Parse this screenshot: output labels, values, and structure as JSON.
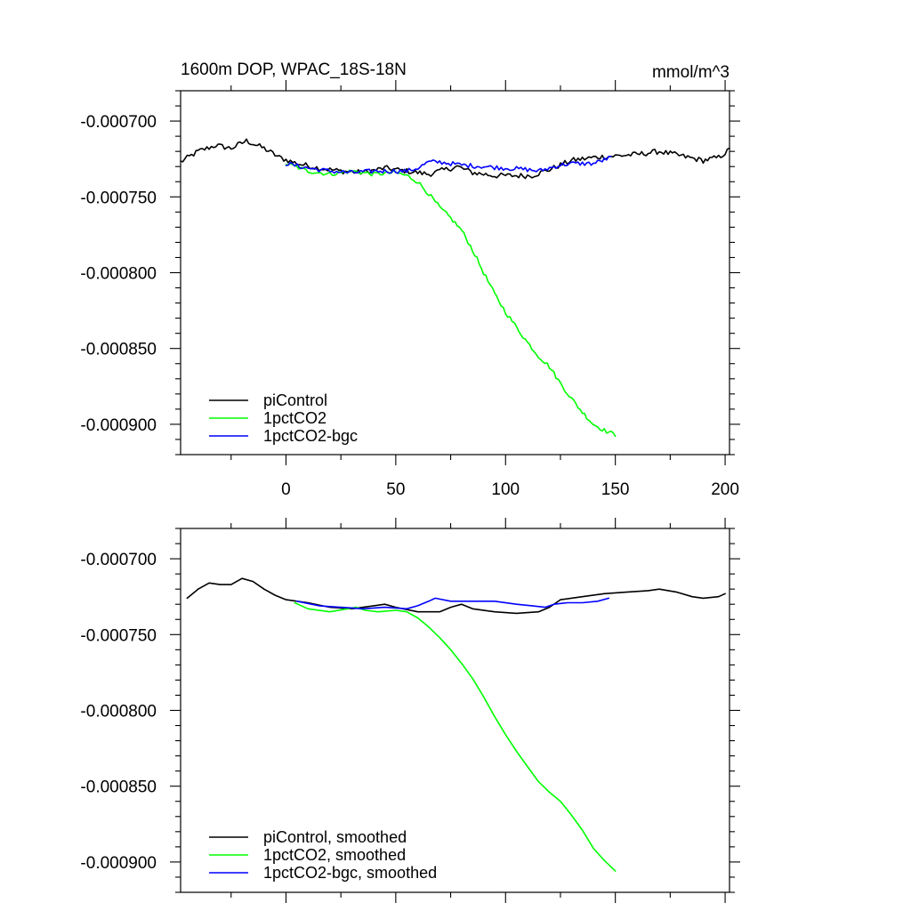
{
  "chart_data": [
    {
      "type": "line",
      "title": "1600m DOP, WPAC_18S-18N",
      "units_label": "mmol/m^3",
      "xlabel": "",
      "ylabel": "",
      "xlim": [
        -48,
        202
      ],
      "ylim": [
        -0.00092,
        -0.00068
      ],
      "x_ticks": [
        0,
        50,
        100,
        150,
        200
      ],
      "x_tick_labels": [
        "0",
        "50",
        "100",
        "150",
        "200"
      ],
      "x_minor_ticks": [
        -25,
        25,
        75,
        125,
        175
      ],
      "y_ticks": [
        -0.0007,
        -0.00075,
        -0.0008,
        -0.00085,
        -0.0009
      ],
      "y_tick_labels": [
        "-0.000700",
        "-0.000750",
        "-0.000800",
        "-0.000850",
        "-0.000900"
      ],
      "grid": false,
      "legend_position": "bottom-left",
      "series": [
        {
          "name": "piControl",
          "color": "#000000",
          "noise": 1.8e-06,
          "points": [
            [
              -48,
              -0.000727
            ],
            [
              -40,
              -0.00072
            ],
            [
              -32,
              -0.000716
            ],
            [
              -25,
              -0.000718
            ],
            [
              -18,
              -0.000713
            ],
            [
              -10,
              -0.000718
            ],
            [
              -3,
              -0.000724
            ],
            [
              5,
              -0.000728
            ],
            [
              15,
              -0.000731
            ],
            [
              25,
              -0.000733
            ],
            [
              35,
              -0.000734
            ],
            [
              45,
              -0.000731
            ],
            [
              55,
              -0.000733
            ],
            [
              65,
              -0.000735
            ],
            [
              70,
              -0.000733
            ],
            [
              78,
              -0.00073
            ],
            [
              85,
              -0.000734
            ],
            [
              95,
              -0.000736
            ],
            [
              105,
              -0.000736
            ],
            [
              112,
              -0.000736
            ],
            [
              120,
              -0.000732
            ],
            [
              130,
              -0.000726
            ],
            [
              140,
              -0.000724
            ],
            [
              150,
              -0.000723
            ],
            [
              160,
              -0.000722
            ],
            [
              170,
              -0.00072
            ],
            [
              180,
              -0.000723
            ],
            [
              190,
              -0.000726
            ],
            [
              197,
              -0.000724
            ],
            [
              202,
              -0.000719
            ]
          ]
        },
        {
          "name": "1pctCO2",
          "color": "#00ff00",
          "noise": 1.4e-06,
          "points": [
            [
              0,
              -0.000728
            ],
            [
              10,
              -0.000733
            ],
            [
              20,
              -0.000735
            ],
            [
              30,
              -0.000733
            ],
            [
              40,
              -0.000735
            ],
            [
              50,
              -0.000734
            ],
            [
              55,
              -0.000736
            ],
            [
              60,
              -0.00074
            ],
            [
              65,
              -0.000748
            ],
            [
              70,
              -0.000757
            ],
            [
              75,
              -0.000764
            ],
            [
              80,
              -0.000772
            ],
            [
              85,
              -0.000785
            ],
            [
              90,
              -0.0008
            ],
            [
              95,
              -0.000814
            ],
            [
              100,
              -0.000826
            ],
            [
              105,
              -0.000836
            ],
            [
              110,
              -0.000846
            ],
            [
              115,
              -0.000855
            ],
            [
              120,
              -0.000862
            ],
            [
              125,
              -0.000873
            ],
            [
              130,
              -0.000883
            ],
            [
              135,
              -0.000892
            ],
            [
              140,
              -0.0009
            ],
            [
              145,
              -0.000904
            ],
            [
              150,
              -0.000907
            ]
          ]
        },
        {
          "name": "1pctCO2-bgc",
          "color": "#0000ff",
          "noise": 1.5e-06,
          "points": [
            [
              0,
              -0.000728
            ],
            [
              10,
              -0.000731
            ],
            [
              20,
              -0.000733
            ],
            [
              30,
              -0.000734
            ],
            [
              40,
              -0.000733
            ],
            [
              50,
              -0.000733
            ],
            [
              55,
              -0.000733
            ],
            [
              60,
              -0.000731
            ],
            [
              65,
              -0.000727
            ],
            [
              70,
              -0.000727
            ],
            [
              80,
              -0.000729
            ],
            [
              90,
              -0.00073
            ],
            [
              100,
              -0.000731
            ],
            [
              110,
              -0.000732
            ],
            [
              115,
              -0.000733
            ],
            [
              120,
              -0.000731
            ],
            [
              125,
              -0.000729
            ],
            [
              130,
              -0.000728
            ],
            [
              140,
              -0.000728
            ],
            [
              148,
              -0.000724
            ]
          ]
        }
      ]
    },
    {
      "type": "line",
      "title": "",
      "xlabel": "",
      "ylabel": "",
      "xlim": [
        -48,
        202
      ],
      "ylim": [
        -0.00092,
        -0.00068
      ],
      "x_ticks": [
        0,
        50,
        100,
        150,
        200
      ],
      "x_tick_labels": [],
      "x_minor_ticks": [
        -25,
        25,
        75,
        125,
        175
      ],
      "y_ticks": [
        -0.0007,
        -0.00075,
        -0.0008,
        -0.00085,
        -0.0009
      ],
      "y_tick_labels": [
        "-0.000700",
        "-0.000750",
        "-0.000800",
        "-0.000850",
        "-0.000900"
      ],
      "grid": false,
      "legend_position": "bottom-left",
      "series": [
        {
          "name": "piControl, smoothed",
          "color": "#000000",
          "noise": 0,
          "points": [
            [
              -45,
              -0.000726
            ],
            [
              -40,
              -0.00072
            ],
            [
              -35,
              -0.000716
            ],
            [
              -30,
              -0.000717
            ],
            [
              -25,
              -0.000717
            ],
            [
              -20,
              -0.000713
            ],
            [
              -15,
              -0.000715
            ],
            [
              -10,
              -0.00072
            ],
            [
              -5,
              -0.000724
            ],
            [
              0,
              -0.000727
            ],
            [
              10,
              -0.000729
            ],
            [
              20,
              -0.000732
            ],
            [
              30,
              -0.000733
            ],
            [
              40,
              -0.000731
            ],
            [
              45,
              -0.00073
            ],
            [
              50,
              -0.000732
            ],
            [
              60,
              -0.000735
            ],
            [
              70,
              -0.000735
            ],
            [
              75,
              -0.000732
            ],
            [
              80,
              -0.00073
            ],
            [
              85,
              -0.000733
            ],
            [
              95,
              -0.000735
            ],
            [
              105,
              -0.000736
            ],
            [
              115,
              -0.000735
            ],
            [
              120,
              -0.000732
            ],
            [
              125,
              -0.000727
            ],
            [
              135,
              -0.000725
            ],
            [
              145,
              -0.000723
            ],
            [
              155,
              -0.000722
            ],
            [
              165,
              -0.000721
            ],
            [
              170,
              -0.00072
            ],
            [
              178,
              -0.000722
            ],
            [
              185,
              -0.000725
            ],
            [
              190,
              -0.000726
            ],
            [
              197,
              -0.000725
            ],
            [
              200,
              -0.000723
            ]
          ]
        },
        {
          "name": "1pctCO2, smoothed",
          "color": "#00ff00",
          "noise": 0,
          "points": [
            [
              4,
              -0.000729
            ],
            [
              10,
              -0.000733
            ],
            [
              20,
              -0.000735
            ],
            [
              28,
              -0.000733
            ],
            [
              32,
              -0.000732
            ],
            [
              36,
              -0.000734
            ],
            [
              42,
              -0.000735
            ],
            [
              50,
              -0.000734
            ],
            [
              55,
              -0.000735
            ],
            [
              60,
              -0.000739
            ],
            [
              65,
              -0.000745
            ],
            [
              70,
              -0.000752
            ],
            [
              75,
              -0.00076
            ],
            [
              80,
              -0.000769
            ],
            [
              85,
              -0.000779
            ],
            [
              90,
              -0.000791
            ],
            [
              95,
              -0.000804
            ],
            [
              100,
              -0.000816
            ],
            [
              105,
              -0.000827
            ],
            [
              110,
              -0.000837
            ],
            [
              115,
              -0.000847
            ],
            [
              120,
              -0.000854
            ],
            [
              125,
              -0.00086
            ],
            [
              130,
              -0.000869
            ],
            [
              135,
              -0.000879
            ],
            [
              140,
              -0.000891
            ],
            [
              145,
              -0.000899
            ],
            [
              150,
              -0.000906
            ]
          ]
        },
        {
          "name": "1pctCO2-bgc, smoothed",
          "color": "#0000ff",
          "noise": 0,
          "points": [
            [
              5,
              -0.000728
            ],
            [
              15,
              -0.000731
            ],
            [
              25,
              -0.000732
            ],
            [
              35,
              -0.000733
            ],
            [
              45,
              -0.000732
            ],
            [
              55,
              -0.000733
            ],
            [
              60,
              -0.000731
            ],
            [
              65,
              -0.000728
            ],
            [
              68,
              -0.000726
            ],
            [
              75,
              -0.000728
            ],
            [
              85,
              -0.000728
            ],
            [
              95,
              -0.000728
            ],
            [
              105,
              -0.00073
            ],
            [
              112,
              -0.000731
            ],
            [
              118,
              -0.000732
            ],
            [
              122,
              -0.00073
            ],
            [
              128,
              -0.000729
            ],
            [
              135,
              -0.000729
            ],
            [
              142,
              -0.000728
            ],
            [
              147,
              -0.000726
            ]
          ]
        }
      ]
    }
  ]
}
